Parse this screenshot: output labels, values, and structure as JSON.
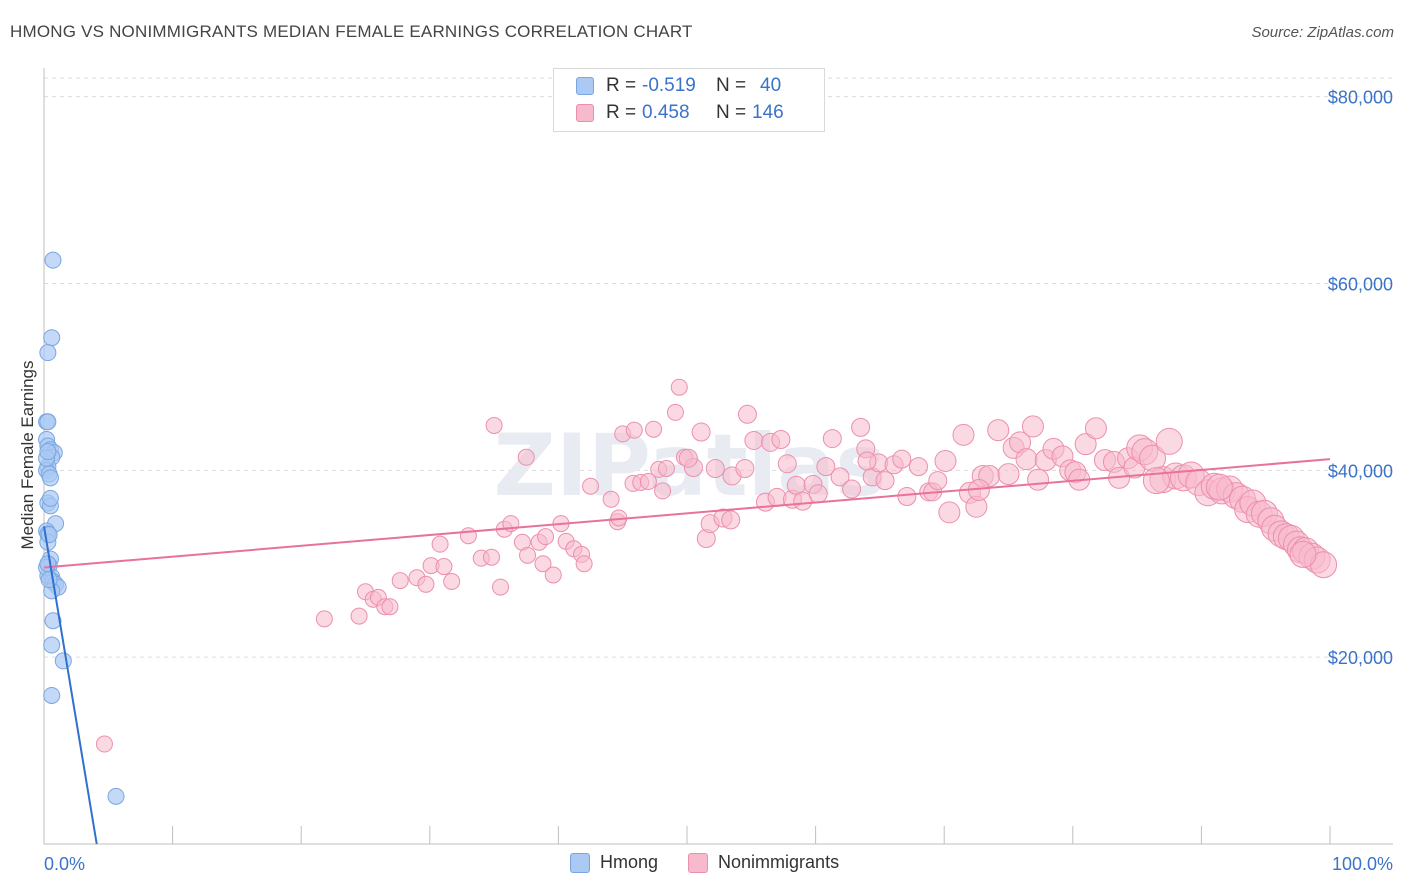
{
  "title": "HMONG VS NONIMMIGRANTS MEDIAN FEMALE EARNINGS CORRELATION CHART",
  "source": "Source: ZipAtlas.com",
  "watermark": "ZIPatlas",
  "legend_top": [
    {
      "r_label": "R =",
      "r_value": "-0.519",
      "n_label": "N =",
      "n_value": "40"
    },
    {
      "r_label": "R =",
      "r_value": "0.458",
      "n_label": "N =",
      "n_value": "146"
    }
  ],
  "legend_bottom": [
    "Hmong",
    "Nonimmigrants"
  ],
  "colors": {
    "hmong_fill": "#aac9f3",
    "hmong_stroke": "#7aa6e0",
    "hmong_line": "#2f70d0",
    "nonim_fill": "#f7b9cc",
    "nonim_stroke": "#ec8fae",
    "nonim_line": "#e8729a",
    "axis_text": "#3a73c9",
    "grid": "#dcdcdc"
  },
  "chart_data": {
    "type": "scatter",
    "title": "HMONG VS NONIMMIGRANTS MEDIAN FEMALE EARNINGS CORRELATION CHART",
    "xlabel": "",
    "ylabel": "Median Female Earnings",
    "xlim": [
      0,
      100
    ],
    "ylim": [
      0,
      82000
    ],
    "x_tick_labels": [
      "0.0%",
      "100.0%"
    ],
    "y_ticks": [
      20000,
      40000,
      60000,
      80000
    ],
    "y_tick_labels": [
      "$20,000",
      "$40,000",
      "$60,000",
      "$80,000"
    ],
    "series": [
      {
        "name": "Hmong",
        "r": -0.519,
        "n": 40,
        "trend": {
          "x0": 0,
          "y0": 34000,
          "x1": 4.1,
          "y1": 0
        },
        "points": [
          [
            0.7,
            62500
          ],
          [
            0.6,
            54200
          ],
          [
            0.3,
            52600
          ],
          [
            0.2,
            45200
          ],
          [
            0.3,
            45200
          ],
          [
            0.2,
            43300
          ],
          [
            0.3,
            42600
          ],
          [
            0.5,
            42200
          ],
          [
            0.8,
            41900
          ],
          [
            0.6,
            41400
          ],
          [
            0.3,
            40400
          ],
          [
            0.2,
            40000
          ],
          [
            0.4,
            39600
          ],
          [
            0.5,
            39200
          ],
          [
            0.3,
            36500
          ],
          [
            0.5,
            36200
          ],
          [
            0.9,
            34300
          ],
          [
            0.2,
            33500
          ],
          [
            0.3,
            33200
          ],
          [
            0.3,
            32300
          ],
          [
            0.5,
            30500
          ],
          [
            0.4,
            29800
          ],
          [
            0.3,
            28700
          ],
          [
            0.6,
            28600
          ],
          [
            0.7,
            28100
          ],
          [
            0.9,
            27800
          ],
          [
            1.1,
            27500
          ],
          [
            0.6,
            27100
          ],
          [
            0.7,
            23900
          ],
          [
            0.6,
            21300
          ],
          [
            1.5,
            19600
          ],
          [
            0.6,
            15900
          ],
          [
            5.6,
            5100
          ],
          [
            0.2,
            41300
          ],
          [
            0.4,
            33100
          ],
          [
            0.2,
            29600
          ],
          [
            0.4,
            28300
          ],
          [
            0.3,
            42000
          ],
          [
            0.5,
            37000
          ],
          [
            0.3,
            30000
          ]
        ]
      },
      {
        "name": "Nonimmigrants",
        "r": 0.458,
        "n": 146,
        "trend": {
          "x0": 0,
          "y0": 29600,
          "x1": 100,
          "y1": 41200
        },
        "points": [
          [
            4.7,
            10700
          ],
          [
            21.8,
            24100
          ],
          [
            24.5,
            24400
          ],
          [
            25.0,
            27000
          ],
          [
            25.6,
            26200
          ],
          [
            26.0,
            26400
          ],
          [
            26.5,
            25400
          ],
          [
            26.9,
            25400
          ],
          [
            27.7,
            28200
          ],
          [
            29.0,
            28500
          ],
          [
            29.7,
            27800
          ],
          [
            30.1,
            29800
          ],
          [
            30.8,
            32100
          ],
          [
            31.1,
            29700
          ],
          [
            31.7,
            28100
          ],
          [
            33.0,
            33000
          ],
          [
            34.0,
            30600
          ],
          [
            34.8,
            30700
          ],
          [
            35.0,
            44800
          ],
          [
            35.5,
            27500
          ],
          [
            35.8,
            33700
          ],
          [
            36.3,
            34300
          ],
          [
            37.2,
            32300
          ],
          [
            37.5,
            41400
          ],
          [
            37.6,
            30900
          ],
          [
            38.5,
            32300
          ],
          [
            38.8,
            30000
          ],
          [
            39.0,
            32900
          ],
          [
            39.6,
            28800
          ],
          [
            40.2,
            34300
          ],
          [
            40.6,
            32400
          ],
          [
            41.2,
            31600
          ],
          [
            41.8,
            31000
          ],
          [
            42.0,
            30000
          ],
          [
            42.5,
            38300
          ],
          [
            44.1,
            36900
          ],
          [
            44.6,
            34500
          ],
          [
            44.7,
            34900
          ],
          [
            45.0,
            43900
          ],
          [
            45.9,
            44300
          ],
          [
            45.8,
            38600
          ],
          [
            46.4,
            38700
          ],
          [
            47.0,
            38800
          ],
          [
            47.4,
            44400
          ],
          [
            47.8,
            40100
          ],
          [
            48.1,
            37800
          ],
          [
            48.4,
            40200
          ],
          [
            49.1,
            46200
          ],
          [
            49.4,
            48900
          ],
          [
            49.8,
            41400
          ],
          [
            50.5,
            40300
          ],
          [
            51.1,
            44100
          ],
          [
            51.5,
            32700
          ],
          [
            51.8,
            34300
          ],
          [
            52.2,
            40200
          ],
          [
            52.8,
            34900
          ],
          [
            53.4,
            34700
          ],
          [
            53.5,
            39400
          ],
          [
            54.5,
            40200
          ],
          [
            54.7,
            46000
          ],
          [
            55.2,
            43200
          ],
          [
            56.1,
            36600
          ],
          [
            56.5,
            43000
          ],
          [
            57.0,
            37100
          ],
          [
            57.3,
            43300
          ],
          [
            57.8,
            40700
          ],
          [
            58.2,
            36900
          ],
          [
            58.5,
            38400
          ],
          [
            59.0,
            36700
          ],
          [
            59.8,
            38500
          ],
          [
            60.2,
            37500
          ],
          [
            60.8,
            40400
          ],
          [
            61.3,
            43400
          ],
          [
            61.9,
            39300
          ],
          [
            62.8,
            38000
          ],
          [
            63.5,
            44600
          ],
          [
            63.9,
            42300
          ],
          [
            64.4,
            39300
          ],
          [
            64.9,
            40800
          ],
          [
            65.4,
            38900
          ],
          [
            66.1,
            40600
          ],
          [
            66.7,
            41200
          ],
          [
            67.1,
            37200
          ],
          [
            68.0,
            40400
          ],
          [
            68.8,
            37700
          ],
          [
            69.1,
            37700
          ],
          [
            69.5,
            38900
          ],
          [
            70.1,
            41000
          ],
          [
            70.4,
            35500
          ],
          [
            71.5,
            43800
          ],
          [
            72.0,
            37600
          ],
          [
            72.5,
            36100
          ],
          [
            73.0,
            39400
          ],
          [
            73.5,
            39400
          ],
          [
            74.2,
            44300
          ],
          [
            75.0,
            39600
          ],
          [
            75.4,
            42400
          ],
          [
            75.9,
            43000
          ],
          [
            76.4,
            41200
          ],
          [
            76.9,
            44700
          ],
          [
            77.3,
            39000
          ],
          [
            77.9,
            41100
          ],
          [
            78.5,
            42300
          ],
          [
            79.2,
            41500
          ],
          [
            79.8,
            40000
          ],
          [
            80.2,
            39800
          ],
          [
            80.5,
            39000
          ],
          [
            81.0,
            42800
          ],
          [
            81.8,
            44500
          ],
          [
            82.5,
            41100
          ],
          [
            83.2,
            40900
          ],
          [
            83.6,
            39200
          ],
          [
            84.3,
            41300
          ],
          [
            84.8,
            40300
          ],
          [
            85.2,
            42400
          ],
          [
            85.6,
            42000
          ],
          [
            86.2,
            41300
          ],
          [
            87.0,
            39000
          ],
          [
            87.5,
            43100
          ],
          [
            88.0,
            39400
          ],
          [
            88.6,
            39200
          ],
          [
            89.2,
            39500
          ],
          [
            89.8,
            38700
          ],
          [
            90.5,
            37600
          ],
          [
            91.0,
            38300
          ],
          [
            91.6,
            37800
          ],
          [
            92.2,
            38000
          ],
          [
            92.7,
            37300
          ],
          [
            93.2,
            36900
          ],
          [
            93.6,
            35800
          ],
          [
            94.0,
            36500
          ],
          [
            94.5,
            35300
          ],
          [
            94.9,
            35400
          ],
          [
            95.4,
            34600
          ],
          [
            95.7,
            33800
          ],
          [
            96.2,
            33200
          ],
          [
            96.6,
            32900
          ],
          [
            97.0,
            32700
          ],
          [
            97.4,
            32100
          ],
          [
            97.7,
            31500
          ],
          [
            98.1,
            31400
          ],
          [
            98.6,
            30800
          ],
          [
            99.0,
            30400
          ],
          [
            99.5,
            29900
          ],
          [
            50.1,
            41300
          ],
          [
            64.0,
            41000
          ],
          [
            72.7,
            37900
          ],
          [
            86.5,
            38900
          ],
          [
            91.4,
            38200
          ],
          [
            97.9,
            31000
          ]
        ]
      }
    ]
  }
}
